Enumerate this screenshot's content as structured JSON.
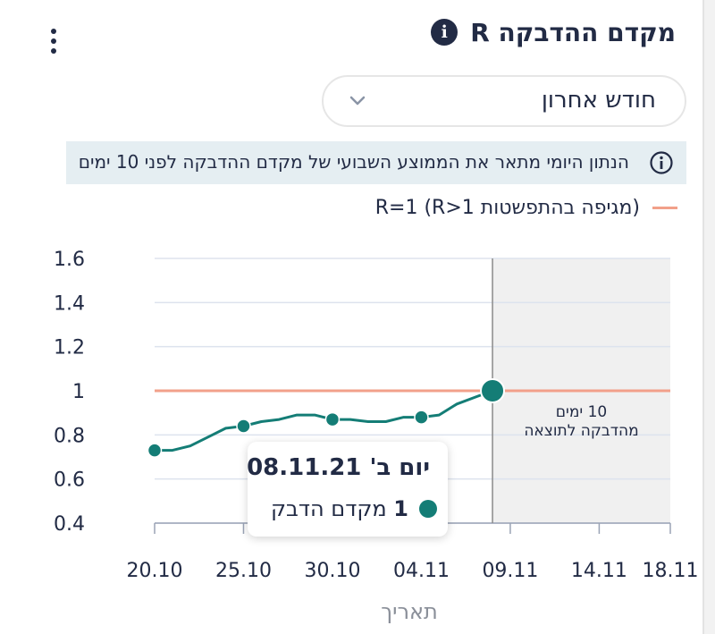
{
  "header": {
    "title": "מקדם ההדבקה R",
    "info_icon_glyph": "i"
  },
  "filter": {
    "selected": "חודש אחרון"
  },
  "notice": {
    "text": "הנתון היומי מתאר את הממוצע השבועי של מקדם ההדבקה לפני 10 ימים"
  },
  "legend": {
    "label": "R=1 (R>1 מגיפה בהתפשטות)",
    "color": "#f2a08a"
  },
  "tooltip": {
    "date": "יום ב' 08.11.21",
    "value": "1",
    "label": "מקדם הדבק"
  },
  "projection": {
    "line1": "10 ימים",
    "line2": "מהדבקה לתוצאה"
  },
  "colors": {
    "series": "#147d76",
    "threshold": "#f2a08a",
    "grid": "#dde3ee",
    "shade": "#f0f0f0"
  },
  "chart_data": {
    "type": "line",
    "xlabel": "תאריך",
    "ylabel": "",
    "ylim": [
      0.4,
      1.6
    ],
    "y_ticks": [
      0.4,
      0.6,
      0.8,
      1,
      1.2,
      1.4,
      1.6
    ],
    "y_tick_labels": [
      "0.4",
      "0.6",
      "0.8",
      "1",
      "1.2",
      "1.4",
      "1.6"
    ],
    "x_ticks": [
      0,
      5,
      10,
      15,
      20,
      25,
      29
    ],
    "x_tick_labels": [
      "20.10",
      "25.10",
      "30.10",
      "04.11",
      "09.11",
      "14.11",
      "18.11"
    ],
    "x_range": [
      0,
      29
    ],
    "threshold": 1,
    "projection_start": 19,
    "series": [
      {
        "x": [
          0,
          1,
          2,
          3,
          4,
          5,
          6,
          7,
          8,
          9,
          10,
          11,
          12,
          13,
          14,
          15,
          16,
          17,
          18,
          19
        ],
        "values": [
          0.73,
          0.73,
          0.75,
          0.79,
          0.83,
          0.84,
          0.86,
          0.87,
          0.89,
          0.89,
          0.87,
          0.87,
          0.86,
          0.86,
          0.88,
          0.88,
          0.89,
          0.94,
          0.97,
          1.0
        ],
        "markers": [
          0,
          5,
          10,
          15,
          19
        ]
      }
    ]
  }
}
